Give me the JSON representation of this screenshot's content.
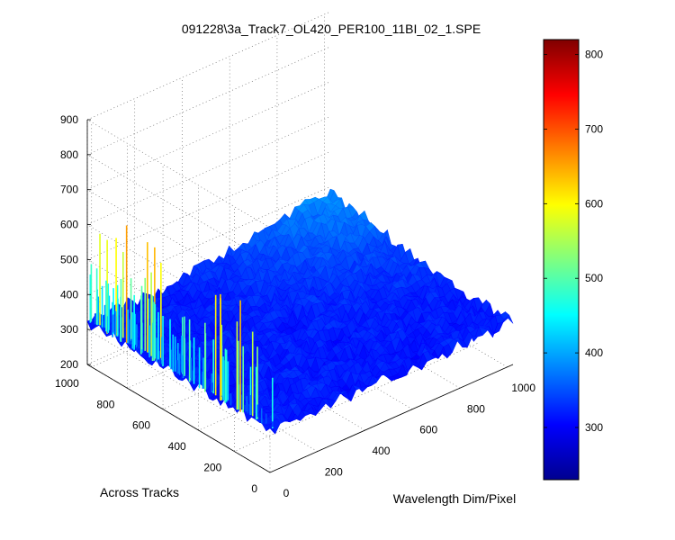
{
  "chart_data": {
    "type": "surface",
    "title": "091228\\3a_Track7_OL420_PER100_11BI_02_1.SPE",
    "xlabel": "Wavelength Dim/Pixel",
    "ylabel": "Across Tracks",
    "zlabel": "",
    "xlim": [
      0,
      1024
    ],
    "ylim": [
      0,
      1024
    ],
    "zlim": [
      200,
      900
    ],
    "x_ticks": [
      "0",
      "200",
      "400",
      "600",
      "800",
      "1000"
    ],
    "y_ticks": [
      "0",
      "200",
      "400",
      "600",
      "800",
      "1000"
    ],
    "z_ticks": [
      "200",
      "300",
      "400",
      "500",
      "600",
      "700",
      "800",
      "900"
    ],
    "colorbar": {
      "min": 230,
      "max": 820,
      "ticks": [
        "300",
        "400",
        "500",
        "600",
        "700",
        "800"
      ],
      "colormap": "jet"
    },
    "surface": {
      "baseline_counts": 320,
      "edge_rows_peak_counts": 680,
      "max_near_far_corner_counts": 420
    },
    "grid": true
  }
}
